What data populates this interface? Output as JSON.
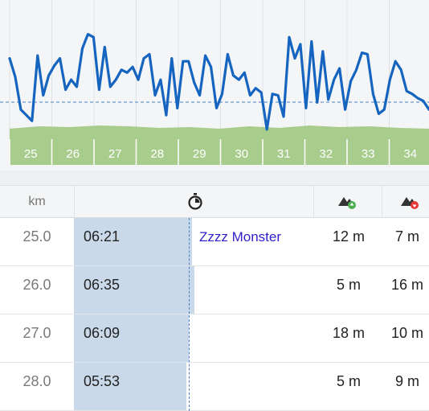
{
  "chart_data": {
    "type": "line",
    "series": [
      {
        "values": [
          118,
          105,
          82,
          78,
          74,
          120,
          92,
          106,
          113,
          118,
          96,
          103,
          98,
          125,
          135,
          133,
          96,
          126,
          98,
          103,
          110,
          108,
          112,
          103,
          118,
          121,
          92,
          103,
          78,
          118,
          83,
          116,
          116,
          101,
          92,
          120,
          112,
          83,
          93,
          121,
          106,
          103,
          108,
          92,
          97,
          94,
          68,
          93,
          92,
          77,
          133,
          118,
          128,
          83,
          130,
          87,
          123,
          89,
          103,
          111,
          82,
          102,
          110,
          122,
          121,
          93,
          79,
          82,
          103,
          116,
          110,
          95,
          93,
          90,
          88,
          82
        ]
      }
    ],
    "km_labels": [
      "25",
      "26",
      "27",
      "28",
      "29",
      "30",
      "31",
      "32",
      "33",
      "34"
    ],
    "grid": true
  },
  "table": {
    "header": {
      "km_label": "km",
      "time_icon": "stopwatch-icon",
      "ascent_icon": "ascent-icon",
      "descent_icon": "descent-icon"
    },
    "rows": [
      {
        "km": "25.0",
        "time": "06:21",
        "note": "Zzzz Monster",
        "ascent": "12 m",
        "descent": "7 m",
        "pace_fill": 0.98
      },
      {
        "km": "26.0",
        "time": "06:35",
        "note": "",
        "ascent": "5 m",
        "descent": "16 m",
        "pace_fill": 1.0
      },
      {
        "km": "27.0",
        "time": "06:09",
        "note": "",
        "ascent": "18 m",
        "descent": "10 m",
        "pace_fill": 0.95
      },
      {
        "km": "28.0",
        "time": "05:53",
        "note": "",
        "ascent": "5 m",
        "descent": "9 m",
        "pace_fill": 0.93
      }
    ]
  },
  "colors": {
    "line": "#1565c0",
    "elevation": "#a8cc8c",
    "pace_bar": "#cad9ea",
    "ascent_arrow": "#4caf50",
    "descent_arrow": "#e53935"
  }
}
